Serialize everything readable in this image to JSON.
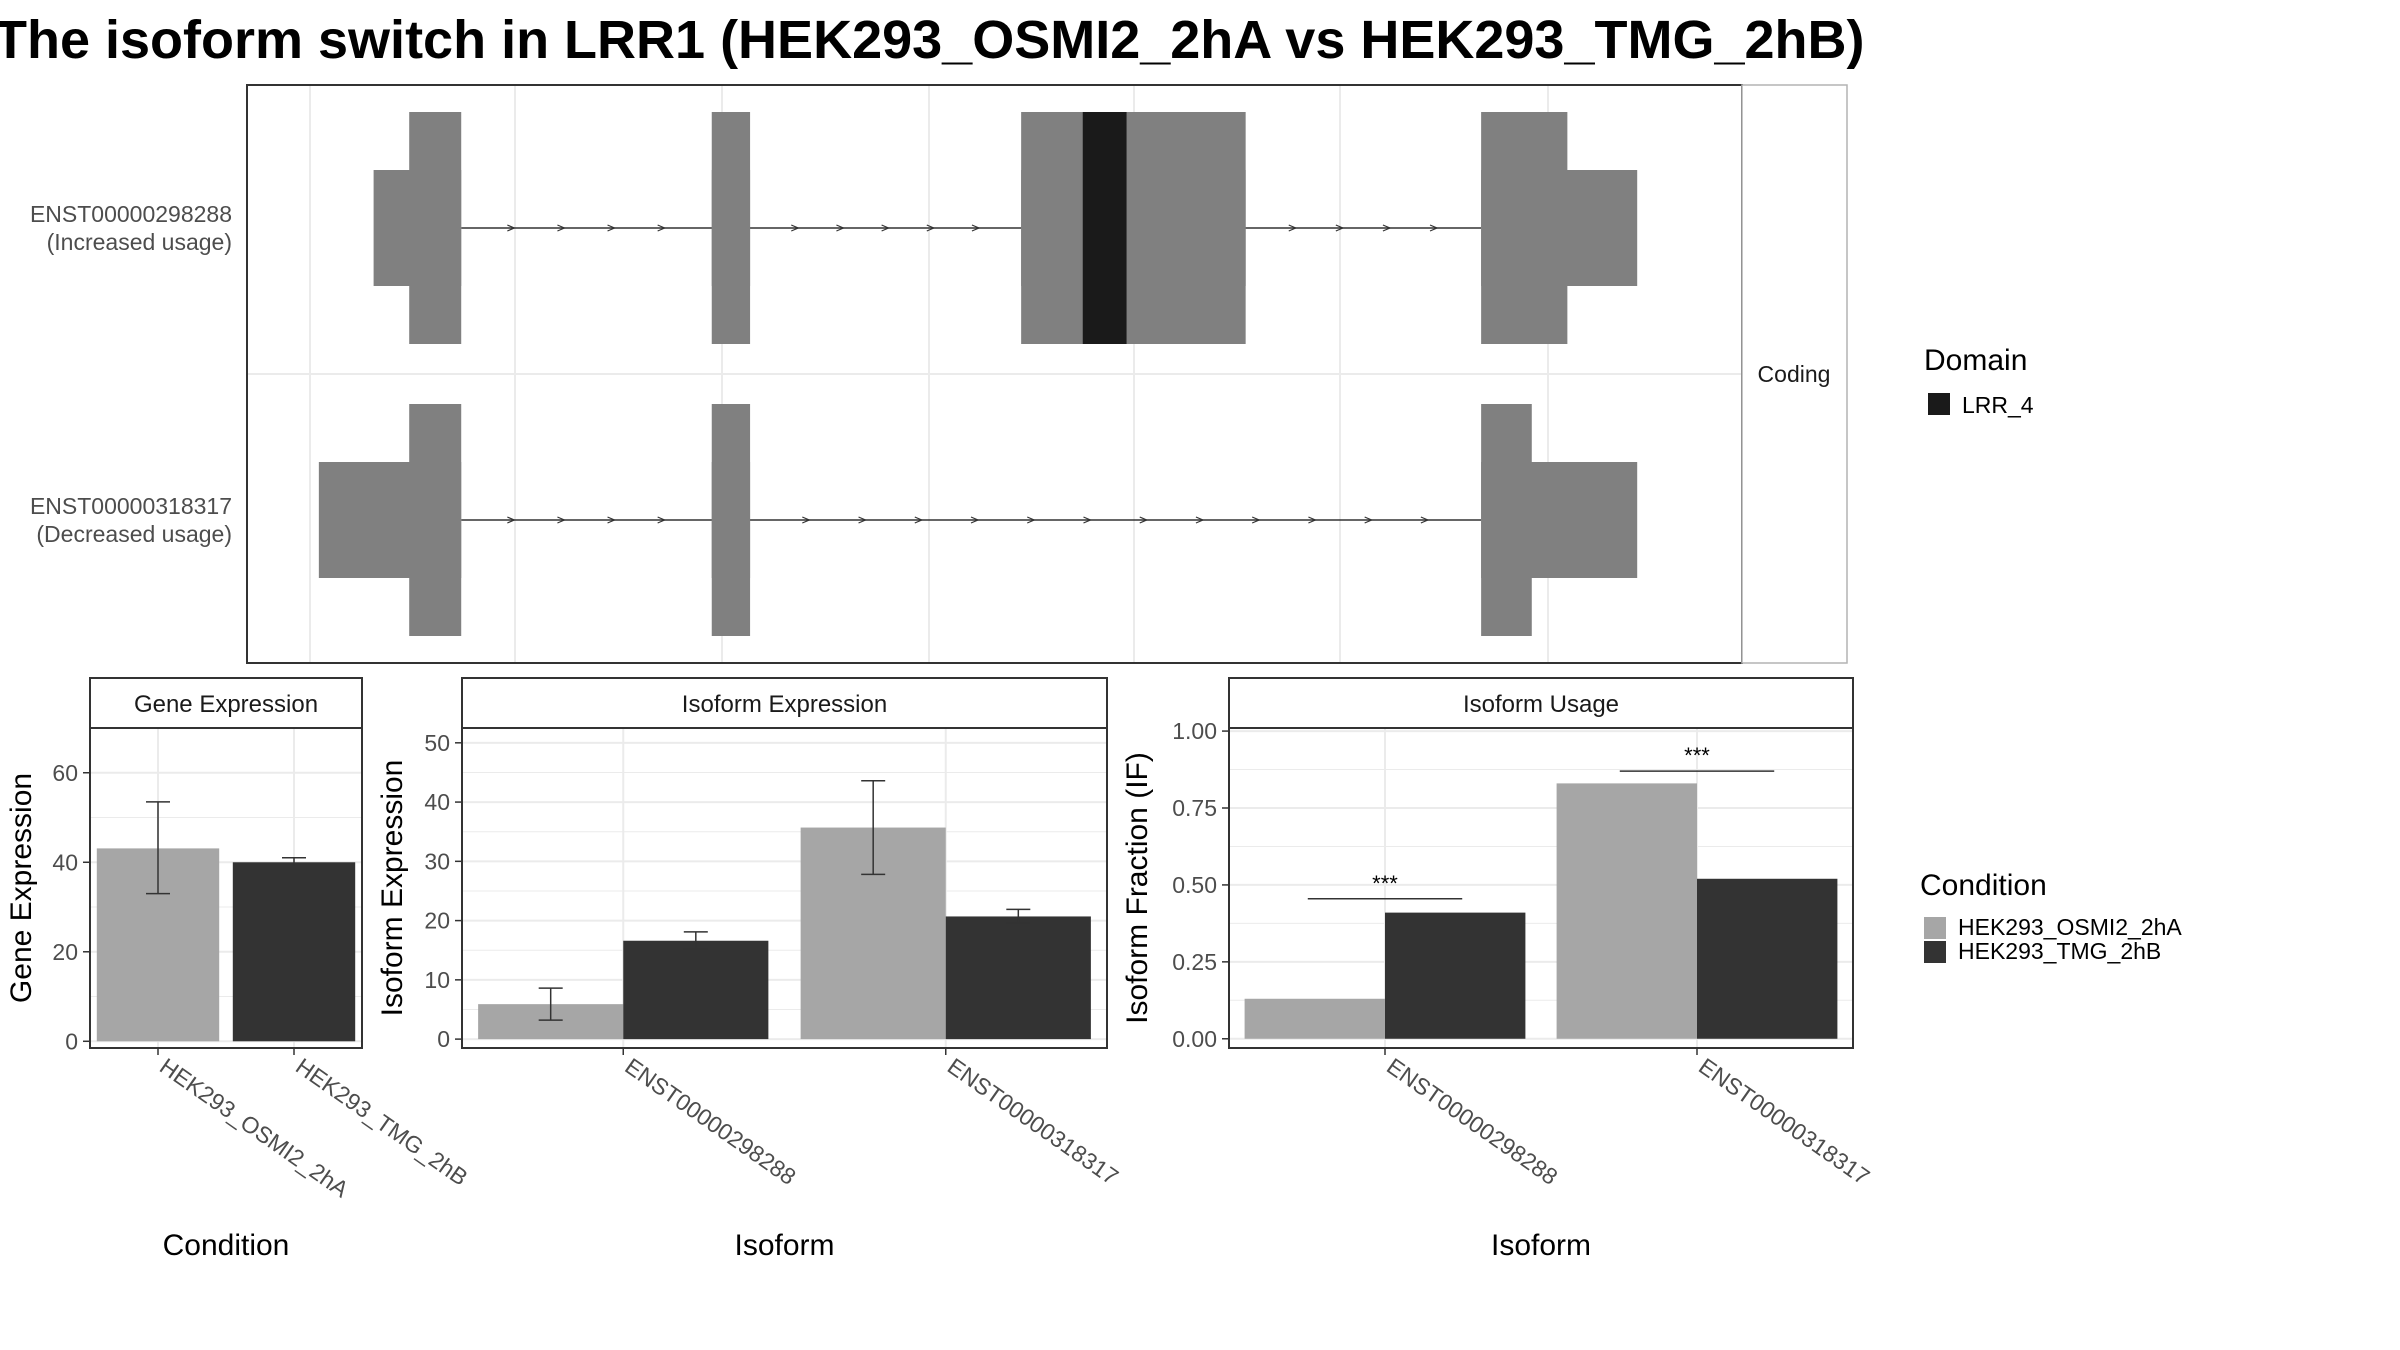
{
  "title": "The isoform switch in LRR1 (HEK293_OSMI2_2hA vs HEK293_TMG_2hB)",
  "colors": {
    "exon": "#808080",
    "domain": "#1a1a1a",
    "cond1": "#a6a6a6",
    "cond2": "#333333",
    "panel_border": "#333333",
    "grid": "#ebebeb"
  },
  "chart_data": [
    {
      "type": "gene-structure",
      "facet_label": "Coding",
      "transcripts": [
        {
          "id": "ENST00000298288",
          "label": "ENST00000298288",
          "usage_label": "(Increased usage)",
          "exons": [
            [
              0.045,
              0.109
            ],
            [
              0.292,
              0.32
            ],
            [
              0.518,
              0.682
            ],
            [
              0.854,
              0.968
            ]
          ],
          "cds": [
            [
              0.071,
              0.109
            ],
            [
              0.292,
              0.32
            ],
            [
              0.518,
              0.682
            ],
            [
              0.854,
              0.917
            ]
          ],
          "domains": [
            {
              "name": "LRR_4",
              "start": 0.563,
              "end": 0.595
            }
          ]
        },
        {
          "id": "ENST00000318317",
          "label": "ENST00000318317",
          "usage_label": "(Decreased usage)",
          "exons": [
            [
              0.005,
              0.109
            ],
            [
              0.292,
              0.32
            ],
            [
              0.854,
              0.968
            ]
          ],
          "cds": [
            [
              0.071,
              0.109
            ],
            [
              0.292,
              0.32
            ],
            [
              0.854,
              0.891
            ]
          ],
          "domains": []
        }
      ],
      "legend": {
        "title": "Domain",
        "items": [
          {
            "label": "LRR_4"
          }
        ]
      }
    },
    {
      "type": "bar",
      "title": "Gene Expression",
      "xlabel": "Condition",
      "ylabel": "Gene Expression",
      "ylim": [
        -1.5,
        70
      ],
      "yticks": [
        0,
        20,
        40,
        60
      ],
      "categories": [
        "HEK293_OSMI2_2hA",
        "HEK293_TMG_2hB"
      ],
      "series": [
        {
          "name": "HEK293_OSMI2_2hA",
          "values": [
            43.1,
            null
          ],
          "err_low": [
            33.0,
            null
          ],
          "err_high": [
            53.5,
            null
          ]
        },
        {
          "name": "HEK293_TMG_2hB",
          "values": [
            null,
            40.0
          ],
          "err_low": [
            null,
            39.0
          ],
          "err_high": [
            null,
            41.0
          ]
        }
      ]
    },
    {
      "type": "bar",
      "title": "Isoform Expression",
      "xlabel": "Isoform",
      "ylabel": "Isoform Expression",
      "ylim": [
        -1.5,
        52.5
      ],
      "yticks": [
        0,
        10,
        20,
        30,
        40,
        50
      ],
      "categories": [
        "ENST00000298288",
        "ENST00000318317"
      ],
      "series": [
        {
          "name": "HEK293_OSMI2_2hA",
          "values": [
            5.9,
            35.7
          ],
          "err_low": [
            3.2,
            27.8
          ],
          "err_high": [
            8.6,
            43.6
          ]
        },
        {
          "name": "HEK293_TMG_2hB",
          "values": [
            16.6,
            20.7
          ],
          "err_low": [
            15.2,
            19.6
          ],
          "err_high": [
            18.1,
            21.9
          ]
        }
      ]
    },
    {
      "type": "bar",
      "title": "Isoform Usage",
      "xlabel": "Isoform",
      "ylabel": "Isoform Fraction (IF)",
      "ylim": [
        -0.03,
        1.01
      ],
      "yticks": [
        0,
        0.25,
        0.5,
        0.75,
        1.0
      ],
      "ytick_labels": [
        "0.00",
        "0.25",
        "0.50",
        "0.75",
        "1.00"
      ],
      "categories": [
        "ENST00000298288",
        "ENST00000318317"
      ],
      "series": [
        {
          "name": "HEK293_OSMI2_2hA",
          "values": [
            0.13,
            0.83
          ]
        },
        {
          "name": "HEK293_TMG_2hB",
          "values": [
            0.41,
            0.52
          ]
        }
      ],
      "significance": [
        {
          "category_index": 0,
          "label": "***",
          "y": 0.455
        },
        {
          "category_index": 1,
          "label": "***",
          "y": 0.87
        }
      ]
    }
  ],
  "condition_legend": {
    "title": "Condition",
    "items": [
      "HEK293_OSMI2_2hA",
      "HEK293_TMG_2hB"
    ]
  }
}
